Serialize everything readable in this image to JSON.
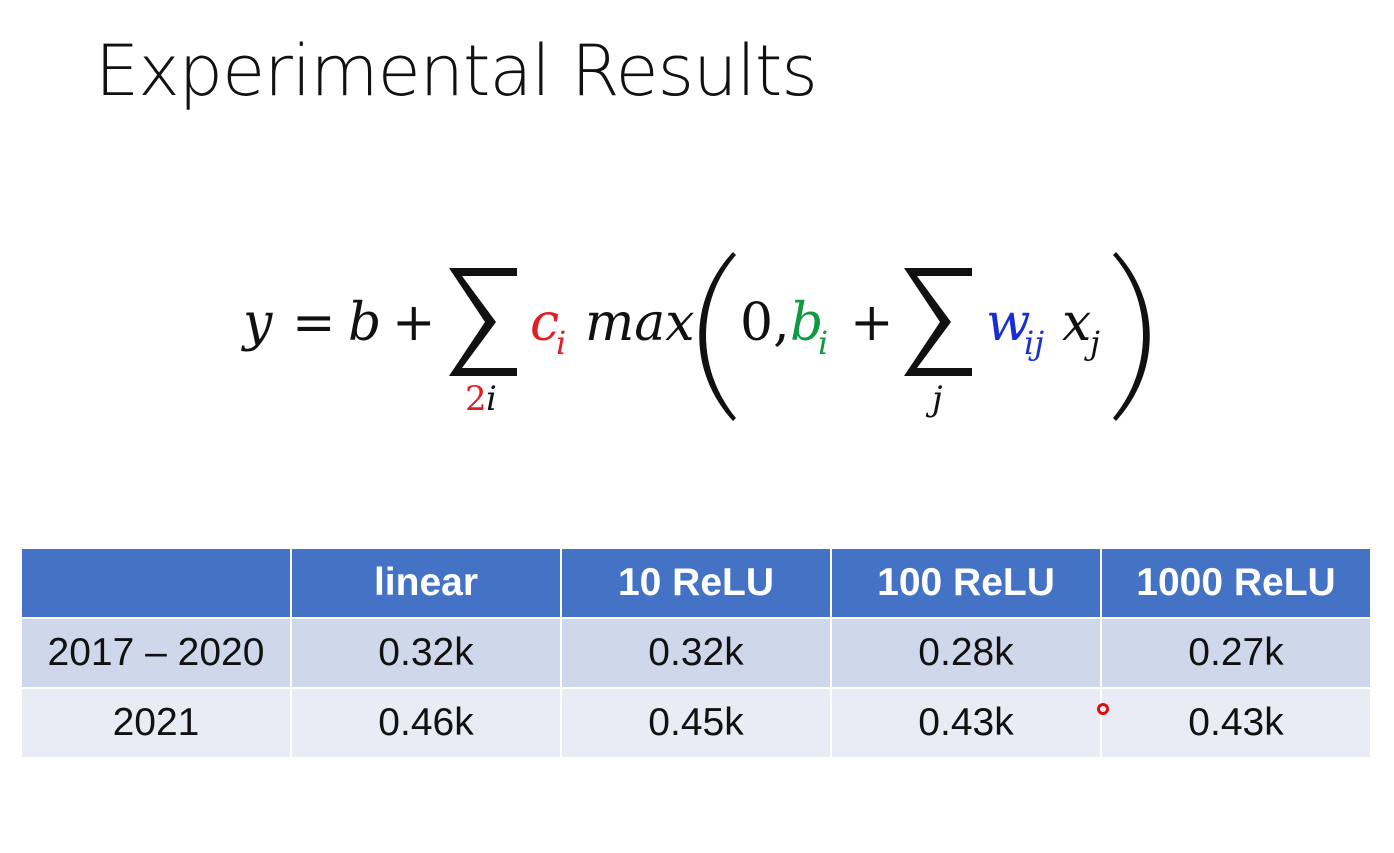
{
  "title": "Experimental Results",
  "formula": {
    "y": "y",
    "eq": "=",
    "b": "b",
    "plus1": "+",
    "sum1_sub_red": "2",
    "sum1_sub_rest": "i",
    "c": "c",
    "c_sub": "i",
    "max": "max",
    "zero_comma": "0,",
    "b_i": "b",
    "b_i_sub": "i",
    "plus2": "+",
    "sum2_sub": "j",
    "w": "w",
    "w_sub": "ij",
    "x": "x",
    "x_sub": "j",
    "colors": {
      "c": "#e02020",
      "b_i": "#119944",
      "w": "#1a2ed6",
      "sum1_sub_red": "#e02020",
      "default": "#111111"
    }
  },
  "table": {
    "headers": [
      "",
      "linear",
      "10 ReLU",
      "100 ReLU",
      "1000 ReLU"
    ],
    "rows": [
      [
        "2017 – 2020",
        "0.32k",
        "0.32k",
        "0.28k",
        "0.27k"
      ],
      [
        "2021",
        "0.46k",
        "0.45k",
        "0.43k",
        "0.43k"
      ]
    ],
    "colors": {
      "header_bg": "#4472c4",
      "row_dark": "#cfd8ea",
      "row_light": "#e9ecf5"
    }
  }
}
